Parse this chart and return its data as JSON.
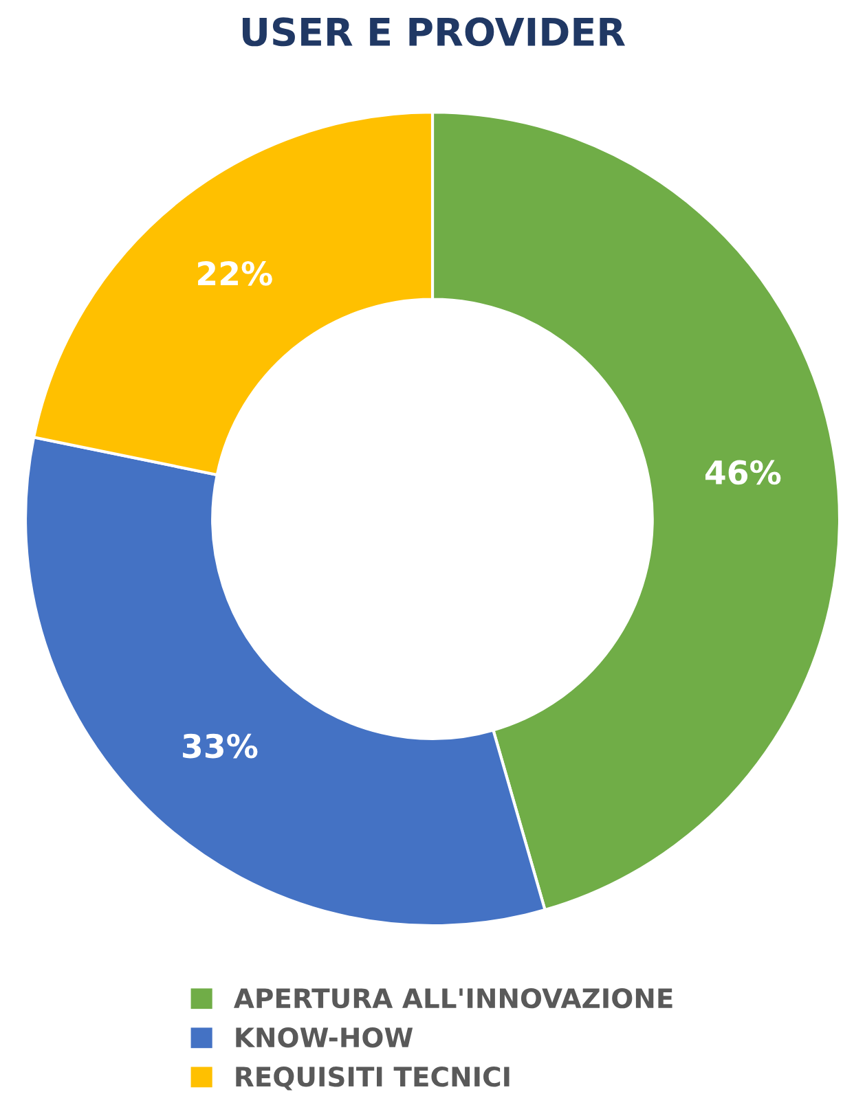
{
  "chart_data": {
    "type": "donut",
    "title": "USER E PROVIDER",
    "categories": [
      "APERTURA ALL'INNOVAZIONE",
      "KNOW-HOW",
      "REQUISITI TECNICI"
    ],
    "values": [
      46,
      33,
      22
    ],
    "colors": [
      "#70ad47",
      "#4472c4",
      "#ffc000"
    ],
    "value_labels": [
      "46%",
      "33%",
      "22%"
    ],
    "legend": "bottom"
  }
}
